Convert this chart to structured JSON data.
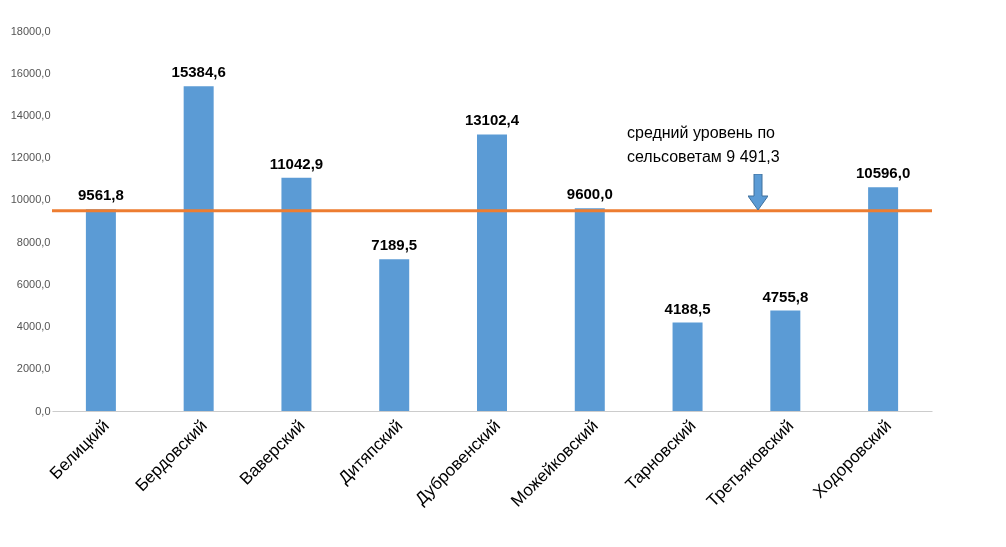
{
  "chart_data": {
    "type": "bar",
    "categories": [
      "Белицкий",
      "Бердовский",
      "Ваверский",
      "Дитяпский",
      "Дубровенский",
      "Можейковский",
      "Тарновский",
      "Третьяковский",
      "Ходоровский"
    ],
    "values": [
      9561.8,
      15384.6,
      11042.9,
      7189.5,
      13102.4,
      9600.0,
      4188.5,
      4755.8,
      10596.0
    ],
    "value_labels": [
      "9561,8",
      "15384,6",
      "11042,9",
      "7189,5",
      "13102,4",
      "9600,0",
      "4188,5",
      "4755,8",
      "10596,0"
    ],
    "color": "#5b9bd5",
    "ylim": [
      0,
      18000
    ],
    "yticks": [
      {
        "value": 0,
        "label": "0,0"
      },
      {
        "value": 2000,
        "label": "2000,0"
      },
      {
        "value": 4000,
        "label": "4000,0"
      },
      {
        "value": 6000,
        "label": "6000,0"
      },
      {
        "value": 8000,
        "label": "8000,0"
      },
      {
        "value": 10000,
        "label": "10000,0"
      },
      {
        "value": 12000,
        "label": "12000,0"
      },
      {
        "value": 14000,
        "label": "14000,0"
      },
      {
        "value": 16000,
        "label": "16000,0"
      },
      {
        "value": 18000,
        "label": "18000,0"
      }
    ],
    "grid": false,
    "ref_lines": [
      {
        "axis": "y",
        "value": 9491.3,
        "label": "средний уровень по\nсельсоветам 9 491,3",
        "color": "#ed7d31"
      }
    ]
  }
}
